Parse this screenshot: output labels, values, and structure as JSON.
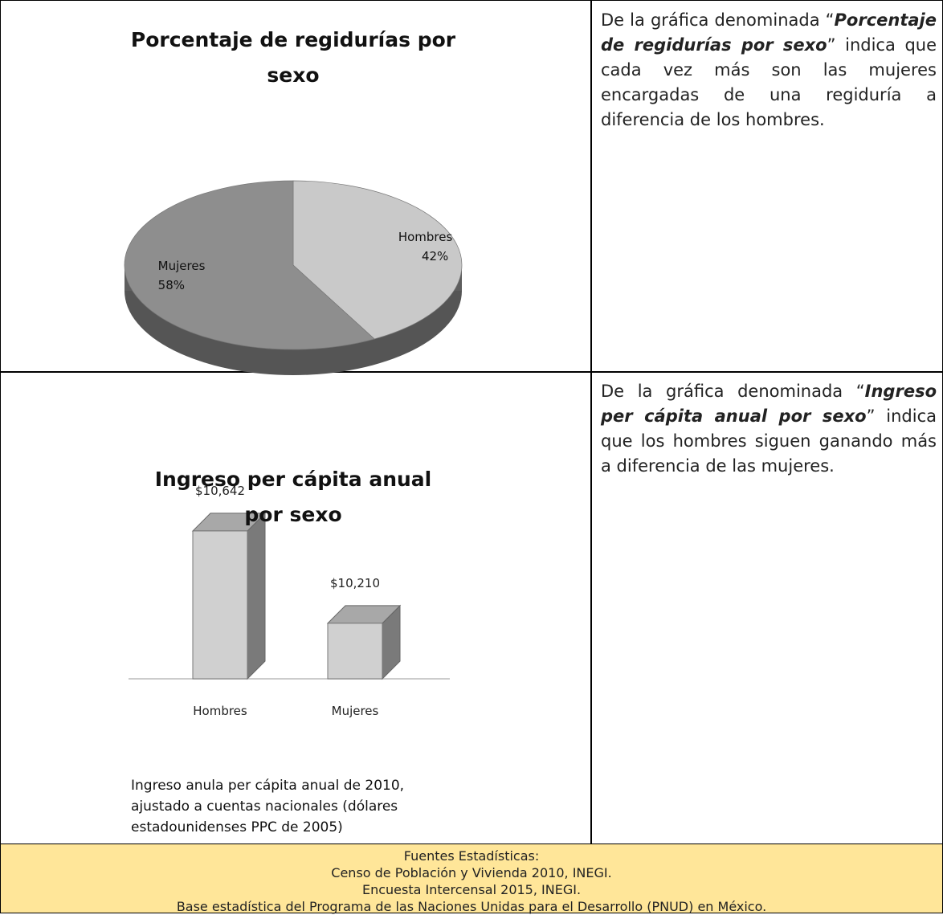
{
  "chart_data": [
    {
      "type": "pie",
      "title": "Porcentaje de regidurías por sexo",
      "categories": [
        "Hombres",
        "Mujeres"
      ],
      "values": [
        42,
        58
      ],
      "value_labels": [
        "42%",
        "58%"
      ],
      "colors": [
        "#c9c9c9",
        "#8e8e8e"
      ]
    },
    {
      "type": "bar",
      "title": "Ingreso per cápita anual por sexo",
      "categories": [
        "Hombres",
        "Mujeres"
      ],
      "values": [
        10642,
        10210
      ],
      "value_labels": [
        "$10,642",
        "$10,210"
      ],
      "color": "#d0d0d0",
      "ylim": [
        9950,
        10700
      ],
      "note": "Ingreso anula per cápita anual de 2010, ajustado a cuentas nacionales (dólares estadounidenses PPC de 2005)"
    }
  ],
  "descriptions": [
    [
      {
        "text": "De la gráfica denominada “",
        "style": "plain"
      },
      {
        "text": "Porcentaje de regidurías por sexo",
        "style": "bold-italic"
      },
      {
        "text": "” indica que cada vez más son las mujeres encargadas de una regiduría a diferencia de los hombres.",
        "style": "plain"
      }
    ],
    [
      {
        "text": "De la gráfica denominada “",
        "style": "plain"
      },
      {
        "text": "Ingreso per cápita anual por sexo",
        "style": "bold-italic"
      },
      {
        "text": "” indica que los hombres siguen ganando más a diferencia de las mujeres.",
        "style": "plain"
      }
    ]
  ],
  "sources": [
    "Fuentes Estadísticas:",
    "Censo de Población y Vivienda 2010, INEGI.",
    "Encuesta Intercensal 2015, INEGI.",
    "Base estadística del Programa de las Naciones Unidas para el Desarrollo (PNUD) en México."
  ]
}
